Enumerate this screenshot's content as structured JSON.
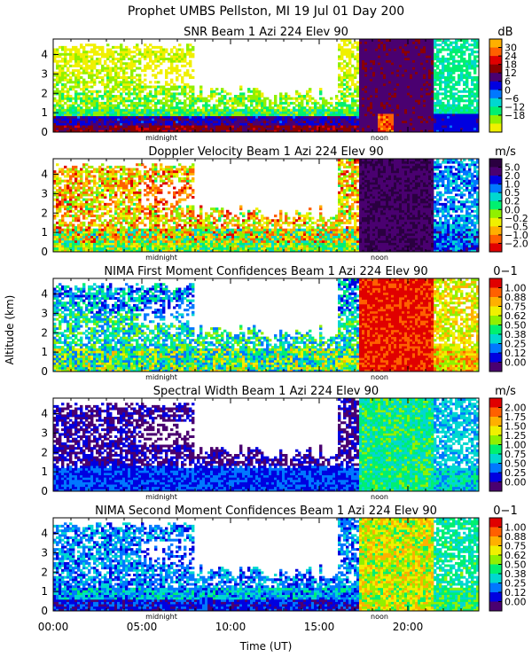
{
  "header": {
    "title": "Prophet  UMBS Pellston, MI  19 Jul 01 Day 200"
  },
  "shared_axes": {
    "ylabel": "Altitude (km)",
    "xlabel": "Time (UT)",
    "x_tick_labels": [
      "00:00",
      "05:00",
      "10:00",
      "15:00",
      "20:00"
    ],
    "x_tick_values_hours": [
      0,
      5,
      10,
      15,
      20
    ],
    "x_range_hours": [
      0,
      24
    ],
    "y_tick_labels": [
      "0",
      "1",
      "2",
      "3",
      "4"
    ],
    "y_tick_values_km": [
      0,
      1,
      2,
      3,
      4
    ],
    "y_range_km": [
      0,
      4.8
    ],
    "markers": [
      {
        "label": "midnight",
        "hour": 6.1
      },
      {
        "label": "noon",
        "hour": 18.4
      }
    ]
  },
  "chart_data": [
    {
      "type": "heatmap",
      "title": "SNR Beam 1 Azi 224 Elev 90",
      "unit": "dB",
      "colorbar": {
        "labels": [
          "30",
          "24",
          "18",
          "12",
          "6",
          "0",
          "−6",
          "−12",
          "−18"
        ],
        "colors": [
          "#ffb000",
          "#ff6000",
          "#e00000",
          "#8a0000",
          "#4a0070",
          "#0000e0",
          "#0078ff",
          "#00d8d0",
          "#00f070",
          "#90f000",
          "#f0f000"
        ]
      },
      "field": "snr"
    },
    {
      "type": "heatmap",
      "title": "Doppler Velocity Beam 1 Azi 224 Elev 90",
      "unit": "m/s",
      "colorbar": {
        "labels": [
          "5.0",
          "2.0",
          "1.0",
          "0.5",
          "0.2",
          "0.0",
          "−0.2",
          "−0.5",
          "−1.0",
          "−2.0"
        ],
        "colors": [
          "#2a0040",
          "#4a0070",
          "#0000e0",
          "#0078ff",
          "#00d8d0",
          "#00f070",
          "#90f000",
          "#f0f000",
          "#ffb000",
          "#ff6000",
          "#e00000"
        ]
      },
      "field": "doppler"
    },
    {
      "type": "heatmap",
      "title": "NIMA First Moment Confidences Beam 1 Azi 224 Elev 90",
      "unit": "0−1",
      "colorbar": {
        "labels": [
          "1.00",
          "0.88",
          "0.75",
          "0.62",
          "0.50",
          "0.38",
          "0.25",
          "0.12",
          "0.00"
        ],
        "colors": [
          "#e00000",
          "#ff6000",
          "#ffb000",
          "#f0f000",
          "#90f000",
          "#00f070",
          "#00d8d0",
          "#0078ff",
          "#0000e0",
          "#4a0070"
        ]
      },
      "field": "conf1"
    },
    {
      "type": "heatmap",
      "title": "Spectral Width Beam 1 Azi 224 Elev 90",
      "unit": "m/s",
      "colorbar": {
        "labels": [
          "2.00",
          "1.75",
          "1.50",
          "1.25",
          "1.00",
          "0.75",
          "0.50",
          "0.25",
          "0.00"
        ],
        "colors": [
          "#e00000",
          "#ff6000",
          "#ffb000",
          "#f0f000",
          "#90f000",
          "#00f070",
          "#00d8d0",
          "#0078ff",
          "#0000e0",
          "#4a0070"
        ]
      },
      "field": "width"
    },
    {
      "type": "heatmap",
      "title": "NIMA Second Moment Confidences Beam 1 Azi 224 Elev 90",
      "unit": "0−1",
      "colorbar": {
        "labels": [
          "1.00",
          "0.88",
          "0.75",
          "0.62",
          "0.50",
          "0.38",
          "0.25",
          "0.12",
          "0.00"
        ],
        "colors": [
          "#e00000",
          "#ff6000",
          "#ffb000",
          "#f0f000",
          "#90f000",
          "#00f070",
          "#00d8d0",
          "#0078ff",
          "#0000e0",
          "#4a0070"
        ]
      },
      "field": "conf2"
    }
  ]
}
